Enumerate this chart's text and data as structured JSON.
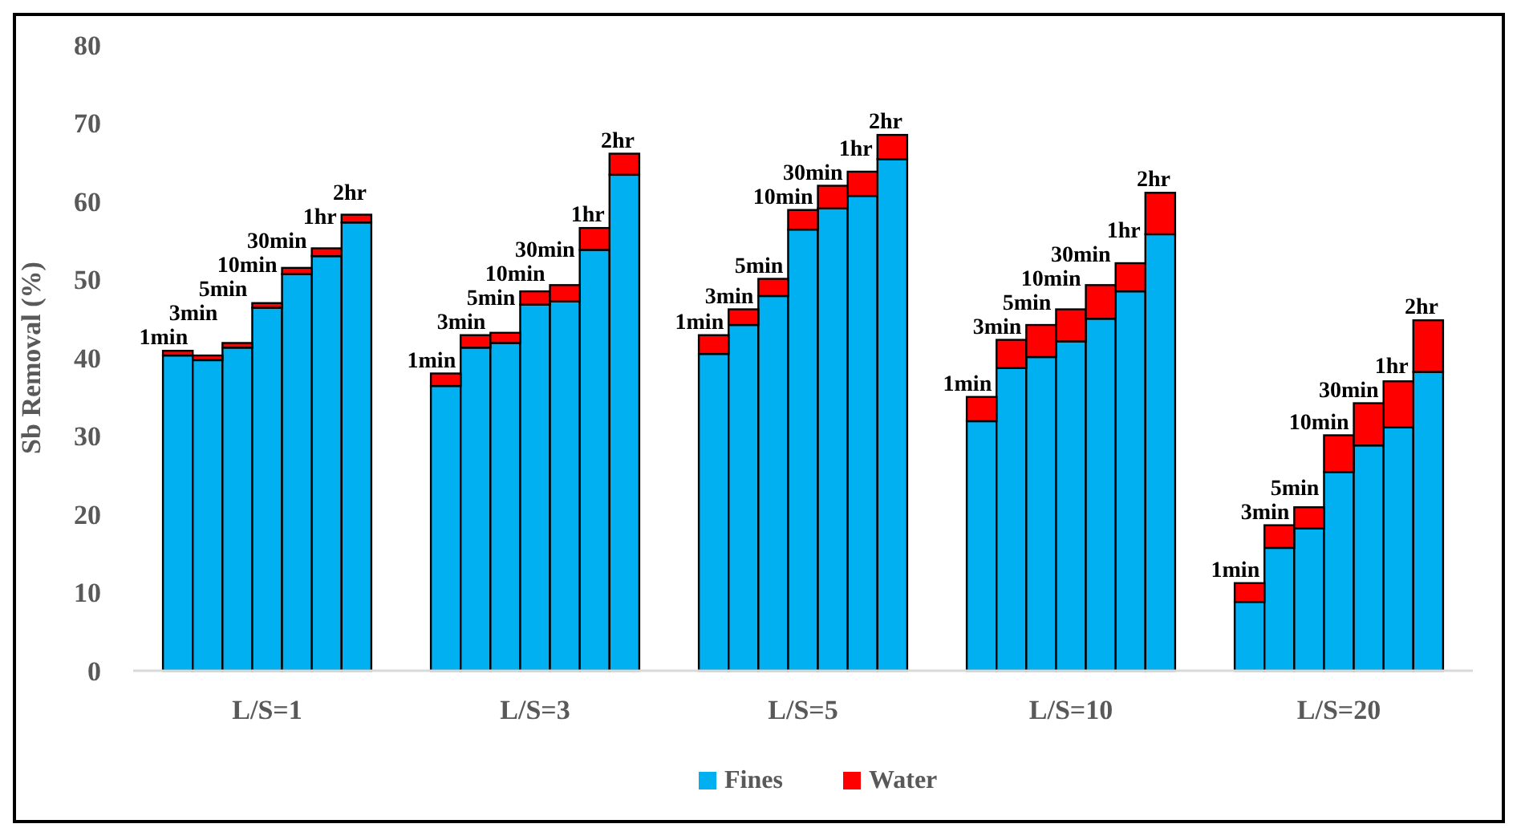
{
  "chart_data": {
    "type": "bar",
    "stacked": true,
    "ylabel": "Sb Removal (%)",
    "categories": [
      null,
      null,
      null,
      null,
      "L/S=1",
      null,
      null,
      null,
      null,
      null,
      null,
      null,
      null,
      "L/S=3",
      null,
      null,
      null,
      null,
      null,
      null,
      null,
      null,
      "L/S=5",
      null,
      null,
      null,
      null,
      null,
      null,
      null,
      null,
      "L/S=10",
      null,
      null,
      null,
      null,
      null,
      null,
      null,
      null,
      "L/S=20",
      null,
      null,
      null,
      null
    ],
    "series": [
      {
        "name": "Fines",
        "color": "#00b0f0",
        "values": [
          null,
          40.3,
          39.7,
          41.3,
          46.4,
          50.7,
          53.0,
          57.3,
          null,
          null,
          36.4,
          41.3,
          41.9,
          46.8,
          47.2,
          53.8,
          63.4,
          null,
          null,
          40.5,
          44.2,
          47.9,
          56.4,
          59.1,
          60.7,
          65.4,
          null,
          null,
          31.9,
          38.7,
          40.1,
          42.1,
          45.0,
          48.5,
          55.8,
          null,
          null,
          8.8,
          15.7,
          18.2,
          25.4,
          28.8,
          31.1,
          38.2,
          null
        ]
      },
      {
        "name": "Water",
        "color": "#ff0000",
        "values": [
          null,
          0.6,
          0.6,
          0.6,
          0.6,
          0.8,
          1.0,
          1.0,
          null,
          null,
          1.6,
          1.6,
          1.3,
          1.7,
          2.1,
          2.8,
          2.7,
          null,
          null,
          2.4,
          2.0,
          2.2,
          2.5,
          2.9,
          3.1,
          3.1,
          null,
          null,
          3.1,
          3.6,
          4.1,
          4.1,
          4.3,
          3.6,
          5.3,
          null,
          null,
          2.4,
          2.9,
          2.7,
          4.7,
          5.4,
          5.9,
          6.6,
          null
        ]
      }
    ],
    "annotations": [
      "1min",
      "3min",
      "5min",
      "10min",
      "30min",
      "1hr",
      "2hr",
      "1min",
      "3min",
      "5min",
      "10min",
      "30min",
      "1hr",
      "2hr",
      "1min",
      "3min",
      "5min",
      "10min",
      "30min",
      "1hr",
      "2hr",
      "1min",
      "3min",
      "5min",
      "10min",
      "30min",
      "1hr",
      "2hr",
      "1min",
      "3min",
      "5min",
      "10min",
      "30min",
      "1hr",
      "2hr"
    ],
    "ylim": [
      0,
      80
    ],
    "yticks": [
      0,
      10,
      20,
      30,
      40,
      50,
      60,
      70,
      80
    ],
    "grid": false,
    "legend": "bottom"
  }
}
